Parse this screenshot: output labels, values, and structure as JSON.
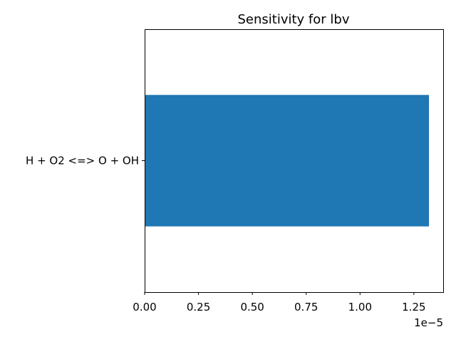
{
  "chart_data": {
    "type": "bar",
    "orientation": "horizontal",
    "title": "Sensitivity for lbv",
    "xlabel": "",
    "ylabel": "",
    "categories": [
      "H + O2 <=> O + OH"
    ],
    "values": [
      1.32e-05
    ],
    "xlim": [
      0,
      1.386e-05
    ],
    "x_ticks": [
      0,
      2.5e-06,
      5e-06,
      7.5e-06,
      1e-05,
      1.25e-05
    ],
    "x_tick_labels": [
      "0.00",
      "0.25",
      "0.50",
      "0.75",
      "1.00",
      "1.25"
    ],
    "x_offset_label": "1e−5",
    "bar_color": "#1f77b4",
    "grid": false,
    "legend": "none"
  }
}
